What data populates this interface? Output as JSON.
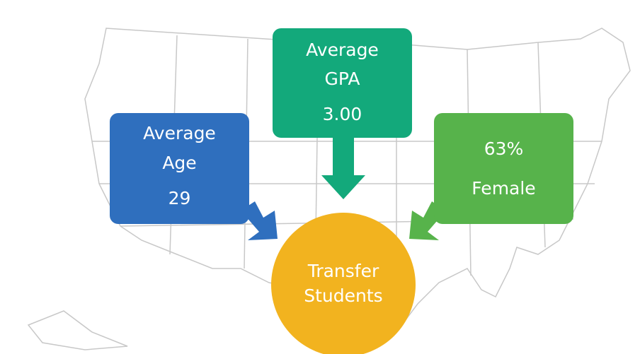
{
  "nodes": [
    {
      "id": "age",
      "lines": [
        "Average",
        "Age",
        "29"
      ],
      "color": "#2f6fbe"
    },
    {
      "id": "gpa",
      "lines": [
        "Average",
        "GPA",
        "3.00"
      ],
      "color": "#13a97b"
    },
    {
      "id": "female",
      "lines": [
        "63%",
        "Female"
      ],
      "color": "#57b34b"
    },
    {
      "id": "center",
      "lines": [
        "Transfer",
        "Students"
      ],
      "color": "#f2b31f"
    }
  ]
}
